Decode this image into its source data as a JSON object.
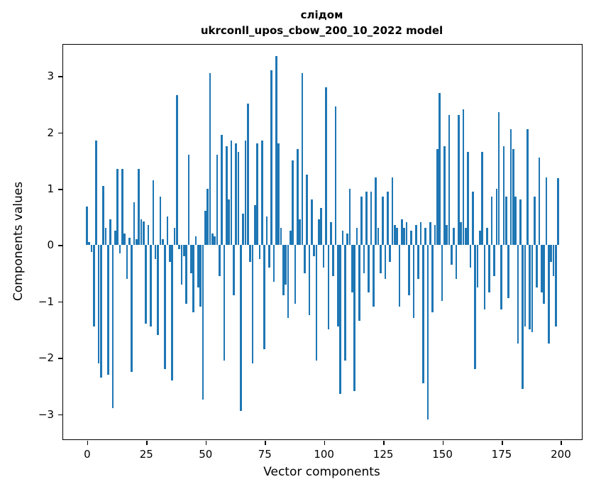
{
  "chart_data": {
    "type": "bar",
    "title_lines": [
      "слідом",
      "ukrconll_upos_cbow_200_10_2022 model"
    ],
    "xlabel": "Vector components",
    "ylabel": "Components values",
    "legend": "none",
    "grid": false,
    "bar_color": "#1f77b4",
    "bar_width": 0.8,
    "xlim": [
      -10,
      209
    ],
    "ylim": [
      -3.45,
      3.55
    ],
    "xticks": [
      {
        "v": 0,
        "label": "0"
      },
      {
        "v": 25,
        "label": "25"
      },
      {
        "v": 50,
        "label": "50"
      },
      {
        "v": 75,
        "label": "75"
      },
      {
        "v": 100,
        "label": "100"
      },
      {
        "v": 125,
        "label": "125"
      },
      {
        "v": 150,
        "label": "150"
      },
      {
        "v": 175,
        "label": "175"
      },
      {
        "v": 200,
        "label": "200"
      }
    ],
    "yticks": [
      {
        "v": -3,
        "label": "−3"
      },
      {
        "v": -2,
        "label": "−2"
      },
      {
        "v": -1,
        "label": "−1"
      },
      {
        "v": 0,
        "label": "0"
      },
      {
        "v": 1,
        "label": "1"
      },
      {
        "v": 2,
        "label": "2"
      },
      {
        "v": 3,
        "label": "3"
      }
    ],
    "x_description": "component index 0..199",
    "values": [
      0.68,
      0.05,
      -0.12,
      -1.45,
      1.85,
      -2.1,
      -2.35,
      1.05,
      0.3,
      -2.3,
      0.45,
      -2.9,
      0.25,
      1.35,
      -0.15,
      1.35,
      0.2,
      -0.6,
      0.12,
      -2.25,
      0.75,
      0.1,
      1.35,
      0.45,
      0.42,
      -1.4,
      0.35,
      -1.45,
      1.15,
      -0.25,
      -1.6,
      0.85,
      0.1,
      -2.2,
      0.5,
      -0.3,
      -2.4,
      0.3,
      2.65,
      -0.08,
      -0.7,
      -0.2,
      -1.05,
      1.6,
      -0.5,
      -1.2,
      0.15,
      -0.75,
      -1.1,
      -2.75,
      0.6,
      1.0,
      3.05,
      0.2,
      0.15,
      1.6,
      -0.55,
      1.95,
      -2.05,
      1.75,
      0.8,
      1.85,
      -0.9,
      1.8,
      1.65,
      -2.95,
      0.55,
      1.85,
      2.5,
      -0.3,
      -2.1,
      0.7,
      1.8,
      -0.25,
      1.85,
      -1.85,
      0.5,
      -0.4,
      3.1,
      -0.65,
      3.35,
      1.8,
      0.3,
      -0.9,
      -0.7,
      -1.3,
      0.25,
      1.5,
      -1.05,
      1.7,
      0.45,
      3.05,
      -0.5,
      1.25,
      -1.25,
      0.8,
      -0.2,
      -2.05,
      0.45,
      0.65,
      -0.4,
      2.8,
      -1.5,
      0.4,
      -0.55,
      2.45,
      -1.45,
      -2.65,
      0.25,
      -2.05,
      0.2,
      1.0,
      -0.85,
      -2.6,
      0.3,
      -1.35,
      0.85,
      -0.5,
      0.95,
      -0.85,
      0.95,
      -1.1,
      1.2,
      0.3,
      -0.5,
      0.85,
      -0.6,
      0.95,
      -0.3,
      1.2,
      0.35,
      0.3,
      -1.1,
      0.45,
      0.3,
      0.4,
      -0.9,
      0.25,
      -1.3,
      0.35,
      -0.6,
      0.4,
      -2.45,
      0.3,
      -3.1,
      0.4,
      -1.2,
      0.35,
      1.7,
      2.7,
      -1.0,
      1.75,
      0.35,
      2.3,
      -0.35,
      0.3,
      -0.6,
      2.3,
      0.4,
      2.4,
      0.3,
      1.65,
      -0.4,
      0.95,
      -2.2,
      -0.75,
      0.25,
      1.65,
      -1.15,
      0.3,
      -0.85,
      0.85,
      -0.55,
      1.0,
      2.35,
      -1.15,
      1.75,
      0.85,
      -0.95,
      2.05,
      1.7,
      0.85,
      -1.75,
      0.8,
      -2.55,
      -1.45,
      2.05,
      -1.5,
      -1.55,
      0.85,
      -0.75,
      1.55,
      -0.85,
      -1.05,
      1.2,
      -1.75,
      -0.3,
      -0.55,
      -1.45,
      1.18
    ]
  }
}
